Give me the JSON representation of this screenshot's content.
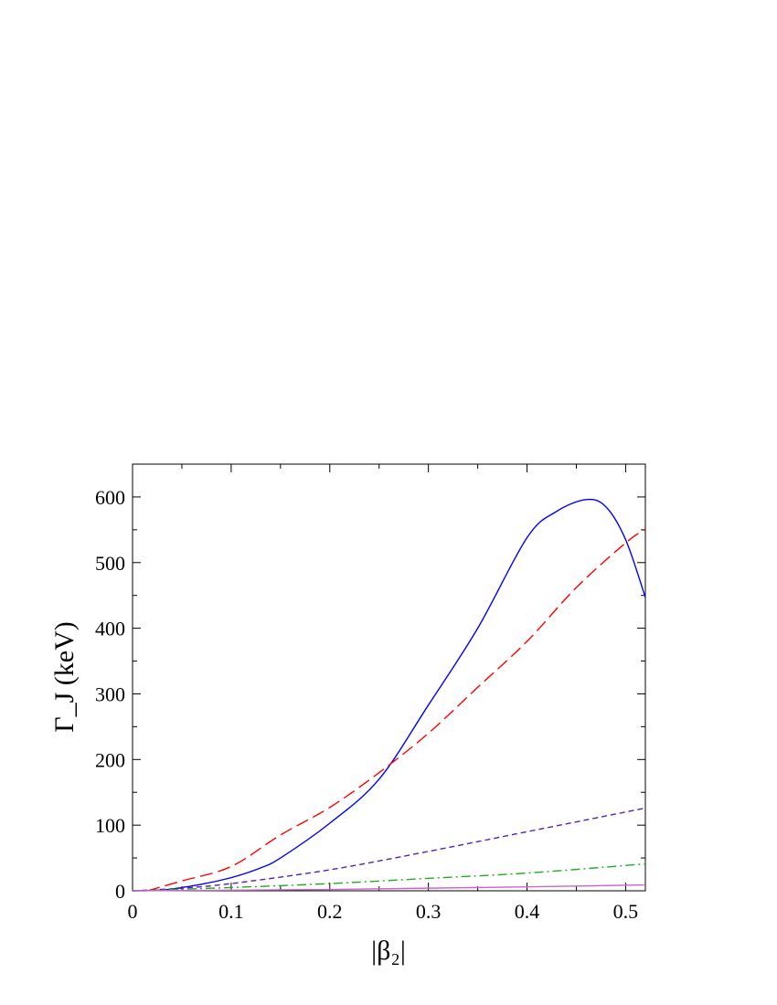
{
  "chart_data": {
    "type": "line",
    "title": "",
    "xlabel": "|β₂|",
    "ylabel": "Γ_J (keV)",
    "xlim": [
      0,
      0.52
    ],
    "ylim": [
      0,
      650
    ],
    "grid": false,
    "x_ticks": [
      0,
      0.1,
      0.2,
      0.3,
      0.4,
      0.5
    ],
    "x_tick_labels": [
      "0",
      "0.1",
      "0.2",
      "0.3",
      "0.4",
      "0.5"
    ],
    "y_ticks": [
      0,
      100,
      200,
      300,
      400,
      500,
      600
    ],
    "y_tick_labels": [
      "0",
      "100",
      "200",
      "300",
      "400",
      "500",
      "600"
    ],
    "series": [
      {
        "color": "#0000ff",
        "dash": "solid",
        "x": [
          0,
          0.03,
          0.05,
          0.07,
          0.1,
          0.13,
          0.15,
          0.2,
          0.25,
          0.3,
          0.35,
          0.4,
          0.43,
          0.46,
          0.48,
          0.5,
          0.52
        ],
        "y": [
          0,
          1,
          5,
          10,
          20,
          35,
          50,
          103,
          170,
          283,
          400,
          538,
          578,
          596,
          585,
          535,
          447
        ]
      },
      {
        "color": "#ff0000",
        "dash": "long-dash",
        "x": [
          0.015,
          0.05,
          0.1,
          0.15,
          0.2,
          0.25,
          0.3,
          0.35,
          0.4,
          0.45,
          0.5,
          0.52
        ],
        "y": [
          0,
          15,
          37,
          85,
          127,
          180,
          240,
          310,
          380,
          462,
          530,
          551
        ]
      },
      {
        "color": "#5522aa",
        "dash": "short-dash",
        "x": [
          0,
          0.05,
          0.1,
          0.2,
          0.3,
          0.4,
          0.52
        ],
        "y": [
          0,
          4,
          11,
          32,
          60,
          90,
          126
        ]
      },
      {
        "color": "#22aa22",
        "dash": "dash-dot",
        "x": [
          0,
          0.1,
          0.2,
          0.3,
          0.4,
          0.52
        ],
        "y": [
          0,
          5,
          11,
          19,
          27,
          41
        ]
      },
      {
        "color": "#cc66cc",
        "dash": "solid",
        "x": [
          0,
          0.1,
          0.2,
          0.3,
          0.4,
          0.52
        ],
        "y": [
          0,
          1,
          2,
          4,
          6,
          9
        ]
      }
    ]
  }
}
